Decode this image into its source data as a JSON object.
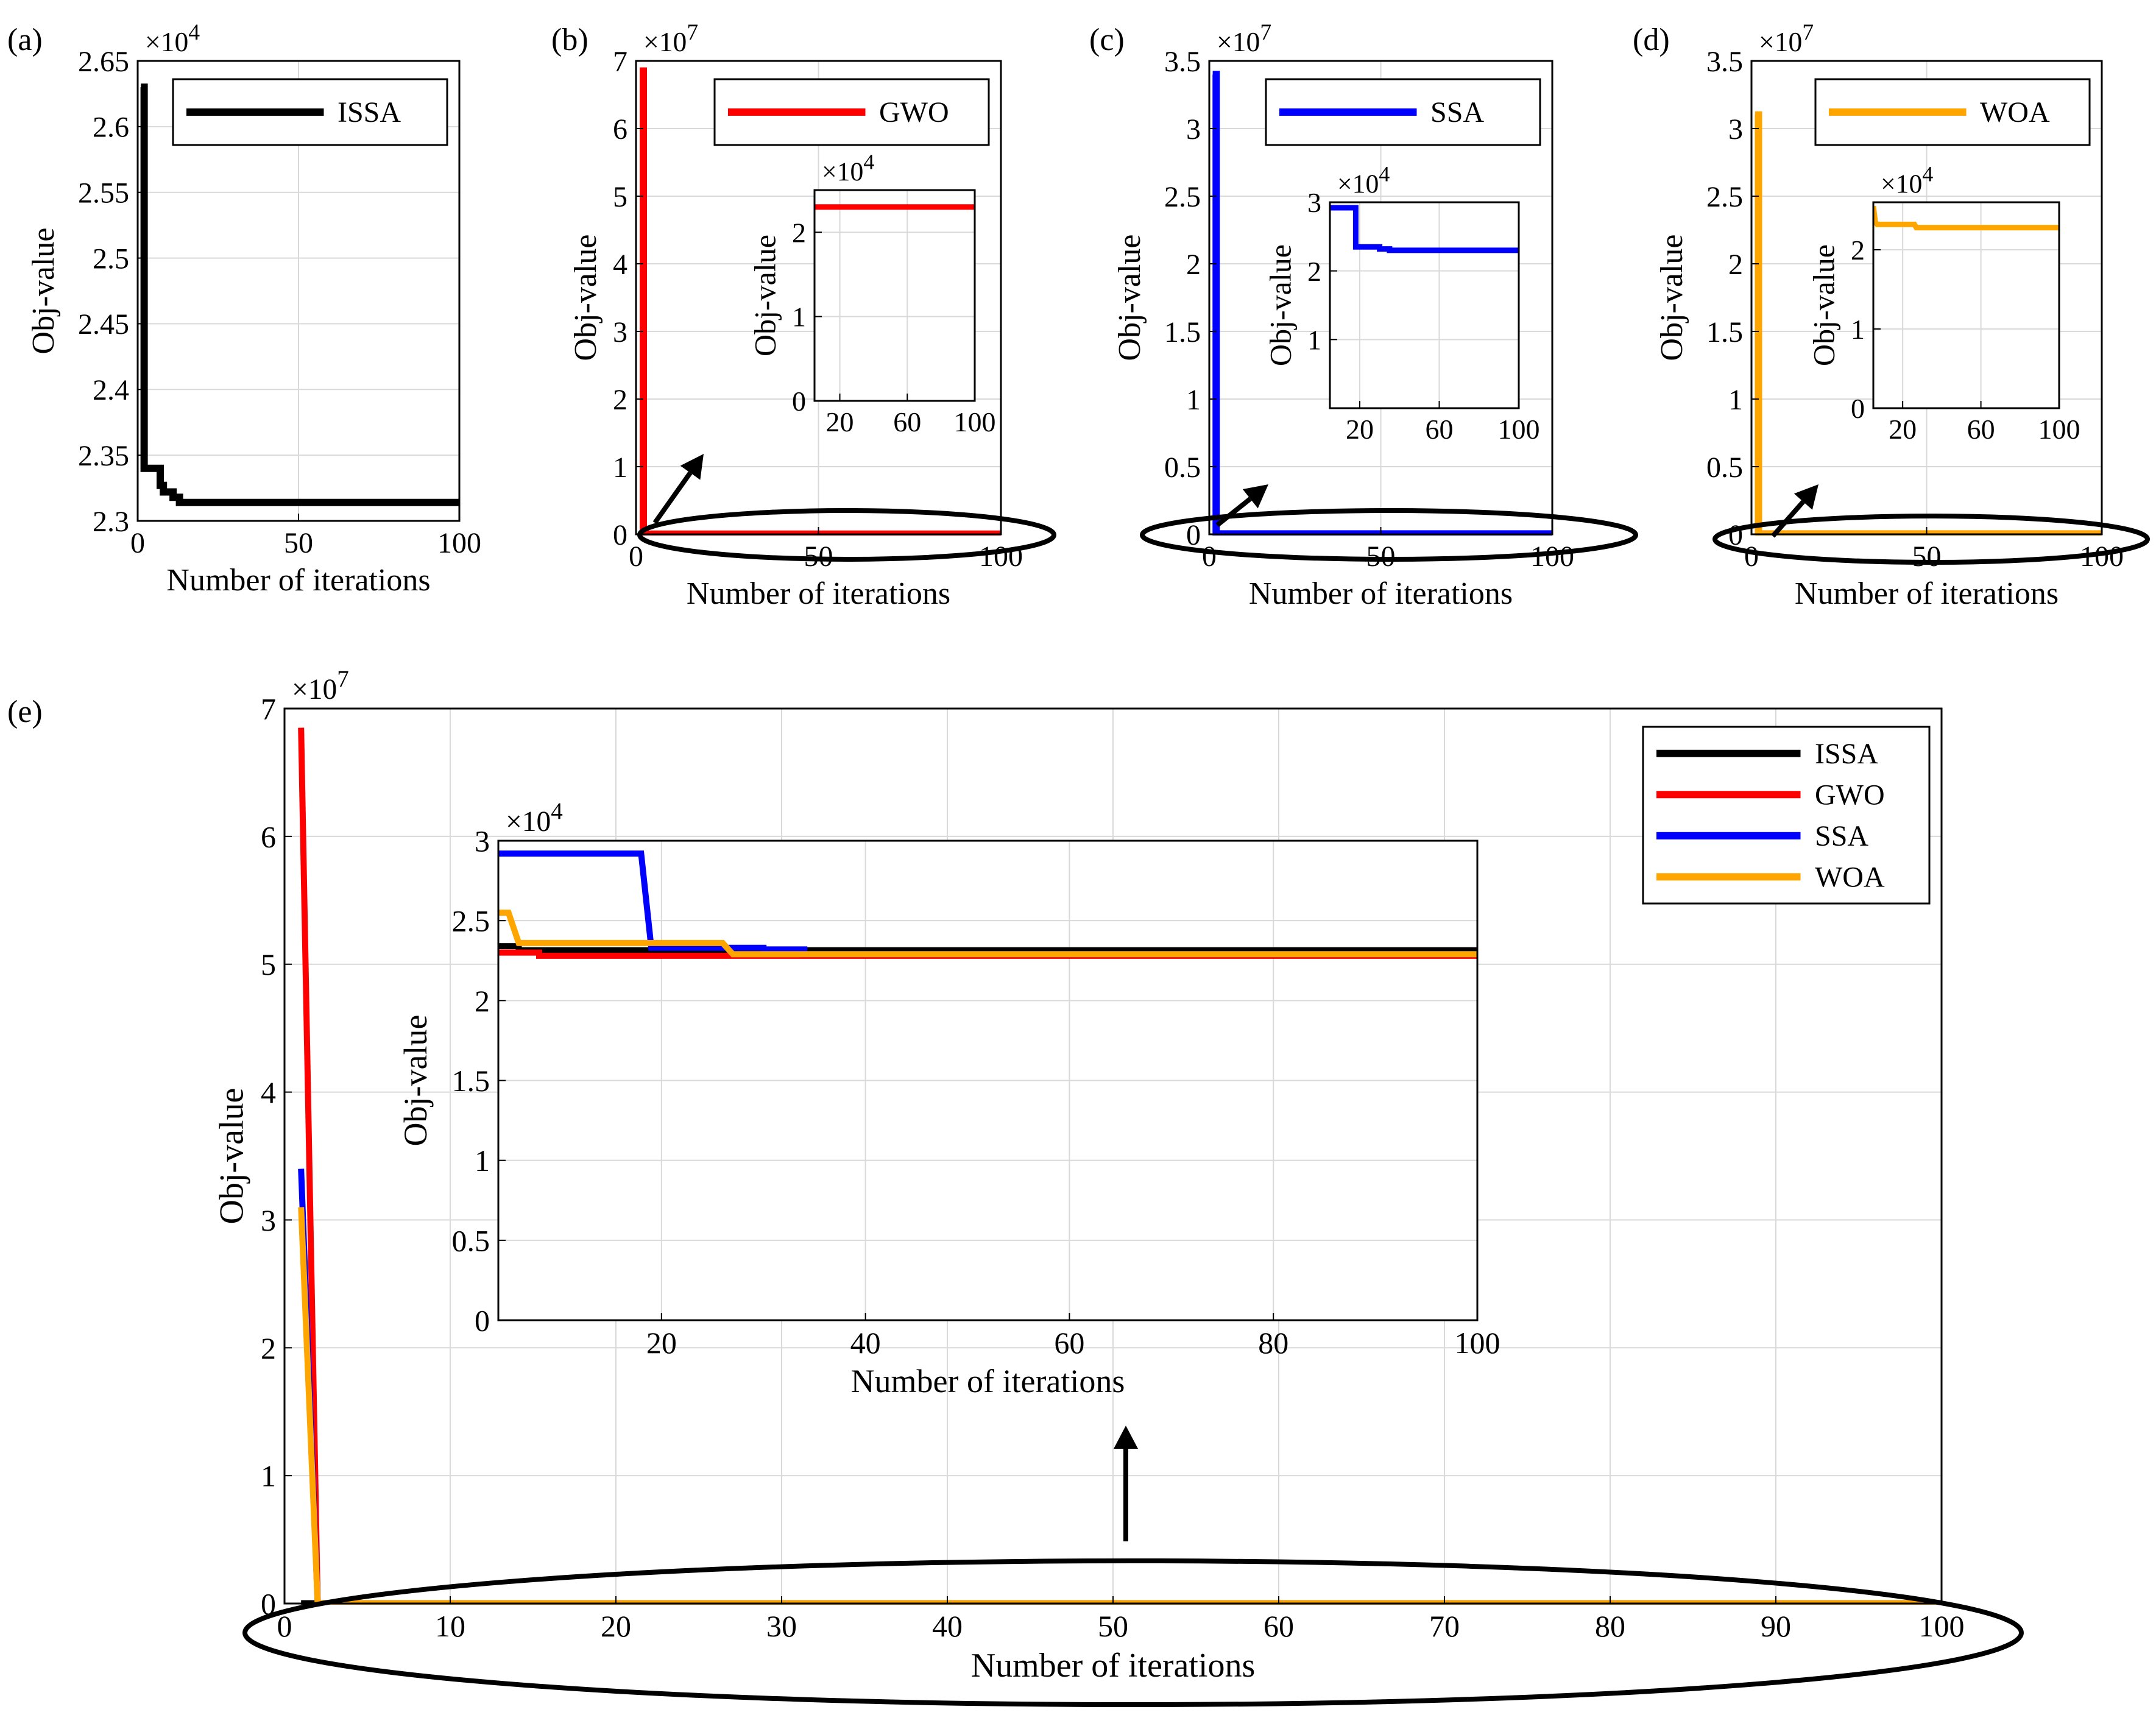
{
  "chart_data": [
    {
      "id": "a",
      "panel_label": "(a)",
      "type": "line",
      "xlabel": "Number of iterations",
      "ylabel": "Obj-value",
      "exponent": "×10",
      "exponent_power": "4",
      "xlim": [
        0,
        100
      ],
      "ylim": [
        2.3,
        2.65
      ],
      "xticks": [
        0,
        50,
        100
      ],
      "xtick_labels": [
        "0",
        "50",
        "100"
      ],
      "yticks": [
        2.3,
        2.35,
        2.4,
        2.45,
        2.5,
        2.55,
        2.6,
        2.65
      ],
      "ytick_labels": [
        "2.3",
        "2.35",
        "2.4",
        "2.45",
        "2.5",
        "2.55",
        "2.6",
        "2.65"
      ],
      "legend": "top-right",
      "series": [
        {
          "name": "ISSA",
          "color": "#000000",
          "x": [
            1,
            2,
            2,
            7,
            7,
            8,
            8,
            11,
            11,
            13,
            13,
            100
          ],
          "y": [
            2.63,
            2.63,
            2.34,
            2.34,
            2.327,
            2.327,
            2.322,
            2.322,
            2.318,
            2.318,
            2.314,
            2.314
          ]
        }
      ]
    },
    {
      "id": "b",
      "panel_label": "(b)",
      "type": "line",
      "xlabel": "Number of iterations",
      "ylabel": "Obj-value",
      "exponent": "×10",
      "exponent_power": "7",
      "xlim": [
        0,
        100
      ],
      "ylim": [
        0,
        7
      ],
      "xticks": [
        0,
        50,
        100
      ],
      "xtick_labels": [
        "0",
        "50",
        "100"
      ],
      "yticks": [
        0,
        1,
        2,
        3,
        4,
        5,
        6,
        7
      ],
      "ytick_labels": [
        "0",
        "1",
        "2",
        "3",
        "4",
        "5",
        "6",
        "7"
      ],
      "legend": "top-right",
      "series": [
        {
          "name": "GWO",
          "color": "#ff0000",
          "x": [
            1,
            2,
            2,
            100
          ],
          "y": [
            6.85,
            6.85,
            0.0023,
            0.0023
          ]
        }
      ],
      "inset": {
        "xlabel": "",
        "ylabel": "Obj-value",
        "exponent": "×10",
        "exponent_power": "4",
        "xlim": [
          5,
          100
        ],
        "ylim": [
          0,
          2.5
        ],
        "xticks": [
          20,
          60,
          100
        ],
        "xtick_labels": [
          "20",
          "60",
          "100"
        ],
        "yticks": [
          0,
          1,
          2
        ],
        "ytick_labels": [
          "0",
          "1",
          "2"
        ],
        "series": [
          {
            "name": "GWO",
            "color": "#ff0000",
            "x": [
              5,
              100
            ],
            "y": [
              2.3,
              2.3
            ]
          }
        ]
      }
    },
    {
      "id": "c",
      "panel_label": "(c)",
      "type": "line",
      "xlabel": "Number of iterations",
      "ylabel": "Obj-value",
      "exponent": "×10",
      "exponent_power": "7",
      "xlim": [
        0,
        100
      ],
      "ylim": [
        0,
        3.5
      ],
      "xticks": [
        0,
        50,
        100
      ],
      "xtick_labels": [
        "0",
        "50",
        "100"
      ],
      "yticks": [
        0,
        0.5,
        1,
        1.5,
        2,
        2.5,
        3,
        3.5
      ],
      "ytick_labels": [
        "0",
        "0.5",
        "1",
        "1.5",
        "2",
        "2.5",
        "3",
        "3.5"
      ],
      "legend": "top-right",
      "series": [
        {
          "name": "SSA",
          "color": "#0000ff",
          "x": [
            1,
            2,
            2,
            100
          ],
          "y": [
            3.4,
            3.4,
            0.0029,
            0.0029
          ]
        }
      ],
      "inset": {
        "xlabel": "",
        "ylabel": "Obj-value",
        "exponent": "×10",
        "exponent_power": "4",
        "xlim": [
          5,
          100
        ],
        "ylim": [
          0,
          3
        ],
        "xticks": [
          20,
          60,
          100
        ],
        "xtick_labels": [
          "20",
          "60",
          "100"
        ],
        "yticks": [
          1,
          2,
          3
        ],
        "ytick_labels": [
          "1",
          "2",
          "3"
        ],
        "series": [
          {
            "name": "SSA",
            "color": "#0000ff",
            "x": [
              5,
              18,
              18,
              30,
              30,
              35,
              35,
              100
            ],
            "y": [
              2.92,
              2.92,
              2.35,
              2.35,
              2.32,
              2.32,
              2.3,
              2.3
            ]
          }
        ]
      }
    },
    {
      "id": "d",
      "panel_label": "(d)",
      "type": "line",
      "xlabel": "Number of iterations",
      "ylabel": "Obj-value",
      "exponent": "×10",
      "exponent_power": "7",
      "xlim": [
        0,
        100
      ],
      "ylim": [
        0,
        3.5
      ],
      "xticks": [
        0,
        50,
        100
      ],
      "xtick_labels": [
        "0",
        "50",
        "100"
      ],
      "yticks": [
        0,
        0.5,
        1,
        1.5,
        2,
        2.5,
        3,
        3.5
      ],
      "ytick_labels": [
        "0",
        "0.5",
        "1",
        "1.5",
        "2",
        "2.5",
        "3",
        "3.5"
      ],
      "legend": "top-right",
      "series": [
        {
          "name": "WOA",
          "color": "#ffa500",
          "x": [
            1,
            2,
            2,
            100
          ],
          "y": [
            3.1,
            3.1,
            0.0025,
            0.0025
          ]
        }
      ],
      "inset": {
        "xlabel": "",
        "ylabel": "Obj-value",
        "exponent": "×10",
        "exponent_power": "4",
        "xlim": [
          5,
          100
        ],
        "ylim": [
          0,
          2.6
        ],
        "xticks": [
          20,
          60,
          100
        ],
        "xtick_labels": [
          "20",
          "60",
          "100"
        ],
        "yticks": [
          0,
          1,
          2
        ],
        "ytick_labels": [
          "0",
          "1",
          "2"
        ],
        "series": [
          {
            "name": "WOA",
            "color": "#ffa500",
            "x": [
              5,
              6,
              7,
              26,
              27,
              100
            ],
            "y": [
              2.55,
              2.35,
              2.32,
              2.32,
              2.28,
              2.28
            ]
          }
        ]
      }
    },
    {
      "id": "e",
      "panel_label": "(e)",
      "type": "line",
      "xlabel": "Number of iterations",
      "ylabel": "Obj-value",
      "exponent": "×10",
      "exponent_power": "7",
      "xlim": [
        0,
        100
      ],
      "ylim": [
        0,
        7
      ],
      "xticks": [
        0,
        10,
        20,
        30,
        40,
        50,
        60,
        70,
        80,
        90,
        100
      ],
      "xtick_labels": [
        "0",
        "10",
        "20",
        "30",
        "40",
        "50",
        "60",
        "70",
        "80",
        "90",
        "100"
      ],
      "yticks": [
        0,
        1,
        2,
        3,
        4,
        5,
        6,
        7
      ],
      "ytick_labels": [
        "0",
        "1",
        "2",
        "3",
        "4",
        "5",
        "6",
        "7"
      ],
      "legend": "top-right",
      "series": [
        {
          "name": "ISSA",
          "color": "#000000",
          "x": [
            1,
            2,
            2,
            100
          ],
          "y": [
            0.0026,
            0.0026,
            0.0023,
            0.0023
          ]
        },
        {
          "name": "GWO",
          "color": "#ff0000",
          "x": [
            1,
            2,
            100
          ],
          "y": [
            6.85,
            0.0023,
            0.0023
          ]
        },
        {
          "name": "SSA",
          "color": "#0000ff",
          "x": [
            1,
            2,
            100
          ],
          "y": [
            3.4,
            0.0029,
            0.0029
          ]
        },
        {
          "name": "WOA",
          "color": "#ffa500",
          "x": [
            1,
            2,
            100
          ],
          "y": [
            3.1,
            0.0025,
            0.0025
          ]
        }
      ],
      "inset": {
        "xlabel": "Number of iterations",
        "ylabel": "Obj-value",
        "exponent": "×10",
        "exponent_power": "4",
        "xlim": [
          4,
          100
        ],
        "ylim": [
          0,
          3
        ],
        "xticks": [
          20,
          40,
          60,
          80,
          100
        ],
        "xtick_labels": [
          "20",
          "40",
          "60",
          "80",
          "100"
        ],
        "yticks": [
          0,
          0.5,
          1,
          1.5,
          2,
          2.5,
          3
        ],
        "ytick_labels": [
          "0",
          "0.5",
          "1",
          "1.5",
          "2",
          "2.5",
          "3"
        ],
        "series": [
          {
            "name": "ISSA",
            "color": "#000000",
            "x": [
              4,
              6,
              6,
              100
            ],
            "y": [
              2.34,
              2.34,
              2.315,
              2.315
            ]
          },
          {
            "name": "GWO",
            "color": "#ff0000",
            "x": [
              4,
              8,
              8,
              100
            ],
            "y": [
              2.3,
              2.3,
              2.28,
              2.28
            ]
          },
          {
            "name": "SSA",
            "color": "#0000ff",
            "x": [
              4,
              18,
              19,
              30,
              30,
              34,
              34,
              100
            ],
            "y": [
              2.92,
              2.92,
              2.33,
              2.33,
              2.32,
              2.32,
              2.29,
              2.29
            ]
          },
          {
            "name": "WOA",
            "color": "#ffa500",
            "x": [
              4,
              5,
              6,
              26,
              27,
              100
            ],
            "y": [
              2.55,
              2.55,
              2.36,
              2.36,
              2.29,
              2.29
            ]
          }
        ]
      }
    }
  ]
}
